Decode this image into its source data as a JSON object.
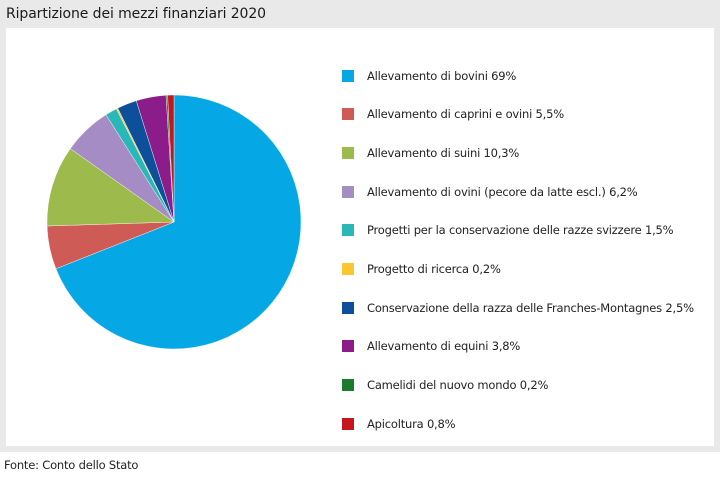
{
  "title": "Ripartizione dei mezzi finanziari 2020",
  "source": "Fonte: Conto dello Stato",
  "chart_data": {
    "type": "pie",
    "title": "Ripartizione dei mezzi finanziari 2020",
    "legend_position": "right",
    "series": [
      {
        "label": "Allevamento di bovini 69%",
        "value": 69.0,
        "color": "#05a8e5"
      },
      {
        "label": "Allevamento di caprini e ovini 5,5%",
        "value": 5.5,
        "color": "#cf5b56"
      },
      {
        "label": "Allevamento di suini 10,3%",
        "value": 10.3,
        "color": "#9dbb4d"
      },
      {
        "label": "Allevamento di ovini (pecore da latte escl.) 6,2%",
        "value": 6.2,
        "color": "#a58cc4"
      },
      {
        "label": "Progetti per la conservazione delle razze svizzere 1,5%",
        "value": 1.5,
        "color": "#2ab7b8"
      },
      {
        "label": "Progetto di ricerca 0,2%",
        "value": 0.2,
        "color": "#fcc631"
      },
      {
        "label": "Conservazione della razza delle Franches-Montagnes 2,5%",
        "value": 2.5,
        "color": "#0d4f9a"
      },
      {
        "label": "Allevamento di equini 3,8%",
        "value": 3.8,
        "color": "#8c1c8a"
      },
      {
        "label": "Camelidi del nuovo mondo 0,2%",
        "value": 0.2,
        "color": "#1c7a2e"
      },
      {
        "label": "Apicoltura 0,8%",
        "value": 0.8,
        "color": "#c4161c"
      }
    ]
  }
}
